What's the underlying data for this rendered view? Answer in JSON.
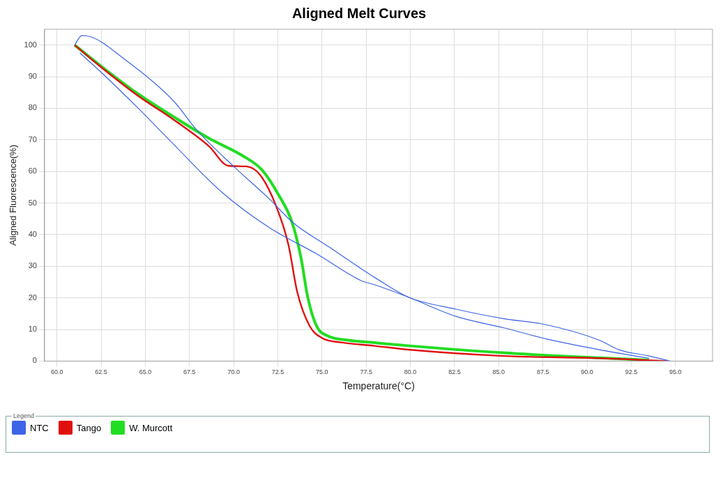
{
  "chart_data": {
    "type": "line",
    "title": "Aligned Melt Curves",
    "xlabel": "Temperature(°C)",
    "ylabel": "Aligned Fluorescence(%)",
    "legend_title": "Legend",
    "legend": "bottom",
    "grid": true,
    "marker": "none",
    "line_style": "solid",
    "xlim": [
      59.3,
      97.1
    ],
    "ylim": [
      0,
      105
    ],
    "xticks": [
      {
        "value": 60,
        "label": "60.0"
      },
      {
        "value": 62.5,
        "label": "62.5"
      },
      {
        "value": 65,
        "label": "65.0"
      },
      {
        "value": 67.5,
        "label": "67.5"
      },
      {
        "value": 70,
        "label": "70.0"
      },
      {
        "value": 72.5,
        "label": "72.5"
      },
      {
        "value": 75,
        "label": "75.0"
      },
      {
        "value": 77.5,
        "label": "77.5"
      },
      {
        "value": 80,
        "label": "80.0"
      },
      {
        "value": 82.5,
        "label": "82.5"
      },
      {
        "value": 85,
        "label": "85.0"
      },
      {
        "value": 87.5,
        "label": "87.5"
      },
      {
        "value": 90,
        "label": "90.0"
      },
      {
        "value": 92.5,
        "label": "92.5"
      },
      {
        "value": 95,
        "label": "95.0"
      }
    ],
    "yticks": [
      0,
      10,
      20,
      30,
      40,
      50,
      60,
      70,
      80,
      90,
      100
    ],
    "series": [
      {
        "name": "NTC",
        "color": "#3c64e6",
        "x": [
          61,
          61.4,
          61.7,
          63.9,
          66.6,
          67.9,
          70.1,
          72,
          73.4,
          75.4,
          77.2,
          78,
          79.9,
          82.6,
          85.3,
          87.6,
          90.7,
          91.8,
          93.5,
          94.7
        ],
        "values": [
          100,
          103,
          102.9,
          95.2,
          82.3,
          73.2,
          61.1,
          51.4,
          43.6,
          36.1,
          29.3,
          26.4,
          20.2,
          16.4,
          13.4,
          11.6,
          6.6,
          3.6,
          1.6,
          0
        ]
      },
      {
        "color": "#3c64e6",
        "x": [
          61.3,
          62.5,
          64.6,
          66.6,
          69.3,
          72,
          74.7,
          77.2,
          78,
          79.9,
          82.6,
          85.3,
          88,
          90.7,
          93.5
        ],
        "values": [
          97.5,
          91.4,
          80,
          68.6,
          53.6,
          42.3,
          33.9,
          25.5,
          24.1,
          20.2,
          14.1,
          10.5,
          6.6,
          3.6,
          0.9
        ]
      },
      {
        "name": "Tango",
        "color": "#e01010",
        "x": [
          61,
          62.5,
          64.6,
          66.6,
          68.6,
          69.7,
          70.7,
          71.5,
          72.4,
          73.1,
          73.6,
          74.3,
          75,
          76.1,
          78,
          79.9,
          85.3,
          90.7,
          94.5
        ],
        "values": [
          100,
          93,
          83.9,
          76.4,
          68,
          61.8,
          61.6,
          58.9,
          49.1,
          36.8,
          21.8,
          11.1,
          7.3,
          5.9,
          4.8,
          3.6,
          1.6,
          0.9,
          0
        ]
      },
      {
        "name": "W. Murcott",
        "color": "#22dd22",
        "x": [
          61,
          62.5,
          64.6,
          66.6,
          68.6,
          70.5,
          71.6,
          72.5,
          73.3,
          73.8,
          74.2,
          74.7,
          75.3,
          76.5,
          78,
          80,
          85.3,
          90.7,
          93.5
        ],
        "values": [
          100,
          93.3,
          84.5,
          77.3,
          70.5,
          65,
          60.5,
          53,
          44,
          33,
          20,
          11,
          8,
          6.6,
          5.8,
          4.8,
          2.6,
          1,
          0.3
        ]
      }
    ]
  }
}
